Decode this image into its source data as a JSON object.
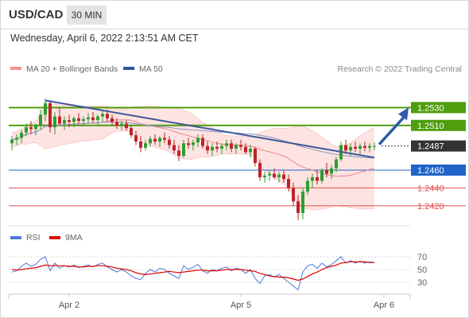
{
  "header": {
    "pair": "USD/CAD",
    "timeframe": "30 MIN",
    "datetime": "Wednesday, April 6, 2022 2:13:51 AM CET",
    "research": "Research © 2022 Trading Central"
  },
  "legend": {
    "bollinger_label": "MA 20 + Bollinger Bands",
    "ma50_label": "MA 50",
    "rsi_label": "RSI",
    "rsi_ma_label": "9MA",
    "bollinger_color": "#f4908f",
    "ma50_color": "#2f5597",
    "rsi_color": "#4d79d9",
    "rsi_ma_color": "#e00000"
  },
  "colors": {
    "bull": "#2e9e2e",
    "bear": "#c0222a",
    "band_fill": "#fde3e1",
    "resistance": "#4f9e0e",
    "current": "#333333",
    "pivot": "#2063c9",
    "support": "#e05050",
    "trendline": "#3d5799",
    "arrow": "#2c5aa8"
  },
  "chart_data": {
    "type": "candlestick",
    "ylim": [
      1.2403,
      1.2565
    ],
    "levels": [
      {
        "value": 1.253,
        "label": "1.2530",
        "kind": "resistance"
      },
      {
        "value": 1.251,
        "label": "1.2510",
        "kind": "resistance"
      },
      {
        "value": 1.2487,
        "label": "1.2487",
        "kind": "current"
      },
      {
        "value": 1.246,
        "label": "1.2460",
        "kind": "pivot"
      },
      {
        "value": 1.244,
        "label": "1.2440",
        "kind": "support"
      },
      {
        "value": 1.242,
        "label": "1.2420",
        "kind": "support"
      }
    ],
    "x_ticks": [
      {
        "label": "Apr 2",
        "index": 12
      },
      {
        "label": "Apr 5",
        "index": 48
      },
      {
        "label": "Apr 6",
        "index": 78
      }
    ],
    "candles": [
      [
        1.249,
        1.2498,
        1.2482,
        1.2494
      ],
      [
        1.2494,
        1.25,
        1.2488,
        1.2496
      ],
      [
        1.2496,
        1.2505,
        1.249,
        1.2502
      ],
      [
        1.2502,
        1.2512,
        1.2498,
        1.2508
      ],
      [
        1.2508,
        1.2515,
        1.25,
        1.2506
      ],
      [
        1.2506,
        1.2512,
        1.2499,
        1.251
      ],
      [
        1.251,
        1.2528,
        1.2505,
        1.2522
      ],
      [
        1.2522,
        1.254,
        1.2515,
        1.2535
      ],
      [
        1.2535,
        1.2538,
        1.2502,
        1.2508
      ],
      [
        1.2508,
        1.2525,
        1.25,
        1.252
      ],
      [
        1.252,
        1.253,
        1.251,
        1.2512
      ],
      [
        1.2512,
        1.252,
        1.2505,
        1.2516
      ],
      [
        1.2516,
        1.2522,
        1.2508,
        1.2514
      ],
      [
        1.2514,
        1.252,
        1.2508,
        1.2518
      ],
      [
        1.2518,
        1.2524,
        1.2512,
        1.2515
      ],
      [
        1.2515,
        1.252,
        1.2509,
        1.2517
      ],
      [
        1.2517,
        1.2524,
        1.2512,
        1.2519
      ],
      [
        1.2519,
        1.2525,
        1.2513,
        1.2516
      ],
      [
        1.2516,
        1.2522,
        1.251,
        1.252
      ],
      [
        1.252,
        1.2527,
        1.2514,
        1.2523
      ],
      [
        1.2523,
        1.2528,
        1.2515,
        1.2518
      ],
      [
        1.2518,
        1.2522,
        1.251,
        1.2514
      ],
      [
        1.2514,
        1.2518,
        1.2506,
        1.251
      ],
      [
        1.251,
        1.2515,
        1.2505,
        1.2512
      ],
      [
        1.2512,
        1.2516,
        1.2504,
        1.2507
      ],
      [
        1.2507,
        1.251,
        1.2496,
        1.2499
      ],
      [
        1.2499,
        1.2504,
        1.2488,
        1.2492
      ],
      [
        1.2492,
        1.2498,
        1.248,
        1.2485
      ],
      [
        1.2485,
        1.2494,
        1.2482,
        1.249
      ],
      [
        1.249,
        1.2498,
        1.2486,
        1.2495
      ],
      [
        1.2495,
        1.25,
        1.2488,
        1.2492
      ],
      [
        1.2492,
        1.2498,
        1.2486,
        1.2496
      ],
      [
        1.2496,
        1.2502,
        1.249,
        1.2494
      ],
      [
        1.2494,
        1.2498,
        1.2484,
        1.2488
      ],
      [
        1.2488,
        1.2494,
        1.2478,
        1.2482
      ],
      [
        1.2482,
        1.2488,
        1.247,
        1.2476
      ],
      [
        1.2476,
        1.2494,
        1.2474,
        1.249
      ],
      [
        1.249,
        1.2496,
        1.2484,
        1.2488
      ],
      [
        1.2488,
        1.2494,
        1.2482,
        1.2491
      ],
      [
        1.2491,
        1.25,
        1.2486,
        1.2496
      ],
      [
        1.2496,
        1.25,
        1.2484,
        1.2487
      ],
      [
        1.2487,
        1.2492,
        1.2478,
        1.2482
      ],
      [
        1.2482,
        1.249,
        1.2476,
        1.2486
      ],
      [
        1.2486,
        1.2492,
        1.248,
        1.2484
      ],
      [
        1.2484,
        1.249,
        1.2478,
        1.2487
      ],
      [
        1.2487,
        1.2494,
        1.2482,
        1.249
      ],
      [
        1.249,
        1.2494,
        1.248,
        1.2484
      ],
      [
        1.2484,
        1.249,
        1.2478,
        1.2488
      ],
      [
        1.2488,
        1.2494,
        1.2482,
        1.2486
      ],
      [
        1.2486,
        1.249,
        1.2478,
        1.248
      ],
      [
        1.248,
        1.2488,
        1.2474,
        1.2484
      ],
      [
        1.2484,
        1.2486,
        1.2464,
        1.2468
      ],
      [
        1.2468,
        1.2472,
        1.2448,
        1.2452
      ],
      [
        1.2452,
        1.2458,
        1.2446,
        1.2454
      ],
      [
        1.2454,
        1.246,
        1.2448,
        1.2456
      ],
      [
        1.2456,
        1.2462,
        1.245,
        1.2452
      ],
      [
        1.2452,
        1.2458,
        1.2446,
        1.2455
      ],
      [
        1.2455,
        1.246,
        1.2446,
        1.245
      ],
      [
        1.245,
        1.2455,
        1.2436,
        1.244
      ],
      [
        1.244,
        1.2446,
        1.242,
        1.2425
      ],
      [
        1.2425,
        1.2432,
        1.2404,
        1.2412
      ],
      [
        1.2412,
        1.244,
        1.2405,
        1.2436
      ],
      [
        1.2436,
        1.2452,
        1.2432,
        1.2448
      ],
      [
        1.2448,
        1.2456,
        1.244,
        1.2452
      ],
      [
        1.2452,
        1.246,
        1.2444,
        1.2448
      ],
      [
        1.2448,
        1.2462,
        1.2445,
        1.246
      ],
      [
        1.246,
        1.2468,
        1.2452,
        1.2456
      ],
      [
        1.2456,
        1.2466,
        1.245,
        1.2462
      ],
      [
        1.2462,
        1.2475,
        1.2458,
        1.2472
      ],
      [
        1.2472,
        1.2492,
        1.247,
        1.2488
      ],
      [
        1.2488,
        1.2494,
        1.2478,
        1.2482
      ],
      [
        1.2482,
        1.249,
        1.2476,
        1.2486
      ],
      [
        1.2486,
        1.2492,
        1.248,
        1.2484
      ],
      [
        1.2484,
        1.249,
        1.2478,
        1.2487
      ],
      [
        1.2487,
        1.2492,
        1.2481,
        1.2485
      ],
      [
        1.2485,
        1.249,
        1.248,
        1.2487
      ],
      [
        1.2487,
        1.2491,
        1.2482,
        1.2487
      ]
    ],
    "trendline": {
      "from": [
        7,
        1.2538
      ],
      "to": [
        76,
        1.2474
      ]
    },
    "rsi": {
      "levels": [
        70,
        50,
        30
      ],
      "ylim": [
        15,
        80
      ],
      "values": [
        46,
        48,
        55,
        60,
        55,
        58,
        66,
        70,
        48,
        60,
        52,
        56,
        54,
        57,
        53,
        55,
        57,
        54,
        58,
        60,
        54,
        50,
        46,
        50,
        46,
        40,
        36,
        34,
        44,
        50,
        46,
        52,
        50,
        44,
        40,
        36,
        56,
        50,
        54,
        58,
        48,
        44,
        50,
        48,
        52,
        54,
        48,
        52,
        50,
        44,
        50,
        36,
        28,
        40,
        42,
        38,
        42,
        36,
        30,
        24,
        18,
        46,
        56,
        58,
        52,
        60,
        54,
        58,
        64,
        70,
        60,
        64,
        60,
        63,
        60,
        62,
        61
      ],
      "ma": [
        50,
        49,
        50,
        51,
        52,
        53,
        55,
        57,
        56,
        56,
        56,
        56,
        55,
        55,
        54,
        54,
        55,
        55,
        56,
        56,
        55,
        54,
        52,
        51,
        50,
        48,
        45,
        43,
        42,
        43,
        44,
        45,
        46,
        47,
        46,
        45,
        46,
        47,
        48,
        49,
        49,
        48,
        48,
        48,
        49,
        50,
        50,
        50,
        50,
        49,
        48,
        47,
        44,
        42,
        40,
        39,
        38,
        38,
        37,
        35,
        33,
        35,
        39,
        43,
        46,
        50,
        53,
        55,
        57,
        60,
        61,
        62,
        62,
        62,
        62,
        61,
        61
      ]
    }
  }
}
